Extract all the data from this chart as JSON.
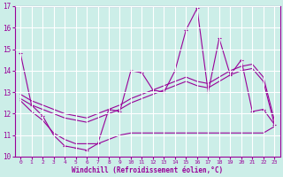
{
  "xlabel": "Windchill (Refroidissement éolien,°C)",
  "background_color": "#cceee8",
  "grid_color": "#aadddd",
  "line_color": "#990099",
  "xmin": -0.5,
  "xmax": 23.5,
  "ymin": 10,
  "ymax": 17,
  "yticks": [
    10,
    11,
    12,
    13,
    14,
    15,
    16,
    17
  ],
  "xticks": [
    0,
    1,
    2,
    3,
    4,
    5,
    6,
    7,
    8,
    9,
    10,
    11,
    12,
    13,
    14,
    15,
    16,
    17,
    18,
    19,
    20,
    21,
    22,
    23
  ],
  "s1_x": [
    0,
    1,
    2,
    3,
    4,
    5,
    6,
    7,
    8,
    9,
    10,
    11,
    12,
    13,
    14,
    15,
    16,
    17,
    18,
    19,
    20,
    21,
    22,
    23
  ],
  "s1_y": [
    14.8,
    12.4,
    11.9,
    11.0,
    10.5,
    10.4,
    10.3,
    10.6,
    12.2,
    12.1,
    14.0,
    13.9,
    13.1,
    13.0,
    14.0,
    15.9,
    16.9,
    13.0,
    15.5,
    13.8,
    14.5,
    12.1,
    12.2,
    11.5
  ],
  "s2_x": [
    0,
    1,
    2,
    3,
    4,
    5,
    6,
    7,
    8,
    9,
    10,
    11,
    12,
    13,
    14,
    15,
    16,
    17,
    18,
    19,
    20,
    21,
    22,
    23
  ],
  "s2_y": [
    12.6,
    12.1,
    11.7,
    11.1,
    10.8,
    10.6,
    10.6,
    10.6,
    10.8,
    11.0,
    11.1,
    11.1,
    11.1,
    11.1,
    11.1,
    11.1,
    11.1,
    11.1,
    11.1,
    11.1,
    11.1,
    11.1,
    11.1,
    11.4
  ],
  "s3_x": [
    0,
    1,
    2,
    3,
    4,
    5,
    6,
    7,
    8,
    9,
    10,
    11,
    12,
    13,
    14,
    15,
    16,
    17,
    18,
    19,
    20,
    21,
    22,
    23
  ],
  "s3_y": [
    12.7,
    12.4,
    12.2,
    12.0,
    11.8,
    11.7,
    11.6,
    11.8,
    12.0,
    12.2,
    12.5,
    12.7,
    12.9,
    13.1,
    13.3,
    13.5,
    13.3,
    13.2,
    13.5,
    13.8,
    14.0,
    14.1,
    13.5,
    11.5
  ],
  "s4_x": [
    0,
    1,
    2,
    3,
    4,
    5,
    6,
    7,
    8,
    9,
    10,
    11,
    12,
    13,
    14,
    15,
    16,
    17,
    18,
    19,
    20,
    21,
    22,
    23
  ],
  "s4_y": [
    12.9,
    12.6,
    12.4,
    12.2,
    12.0,
    11.9,
    11.8,
    12.0,
    12.2,
    12.4,
    12.7,
    12.9,
    13.1,
    13.3,
    13.5,
    13.7,
    13.5,
    13.4,
    13.7,
    14.0,
    14.2,
    14.3,
    13.7,
    11.7
  ]
}
